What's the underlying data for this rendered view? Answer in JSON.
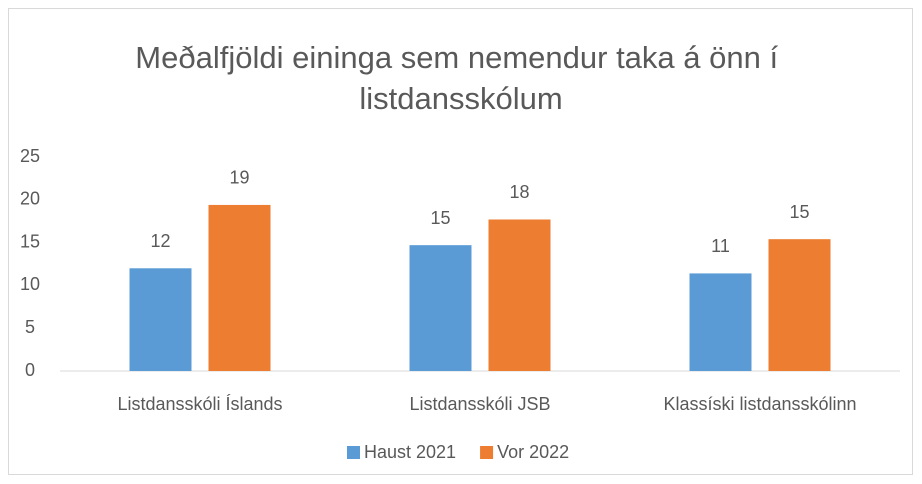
{
  "chart_data": {
    "type": "bar",
    "title": "Meðalfjöldi eininga sem nemendur taka á önn í listdansskólum",
    "categories": [
      "Listdansskóli Íslands",
      "Listdansskóli JSB",
      "Klassíski listdansskólinn"
    ],
    "series": [
      {
        "name": "Haust 2021",
        "color": "#5b9bd5",
        "values": [
          12,
          14.7,
          11.4
        ],
        "value_labels": [
          "12",
          "15",
          "11"
        ]
      },
      {
        "name": "Vor 2022",
        "color": "#ed7d31",
        "values": [
          19.4,
          17.7,
          15.4
        ],
        "value_labels": [
          "19",
          "18",
          "15"
        ]
      }
    ],
    "ylim": [
      0,
      25
    ],
    "yticks": [
      0,
      5,
      10,
      15,
      20,
      25
    ],
    "grid": false,
    "legend": "bottom"
  }
}
